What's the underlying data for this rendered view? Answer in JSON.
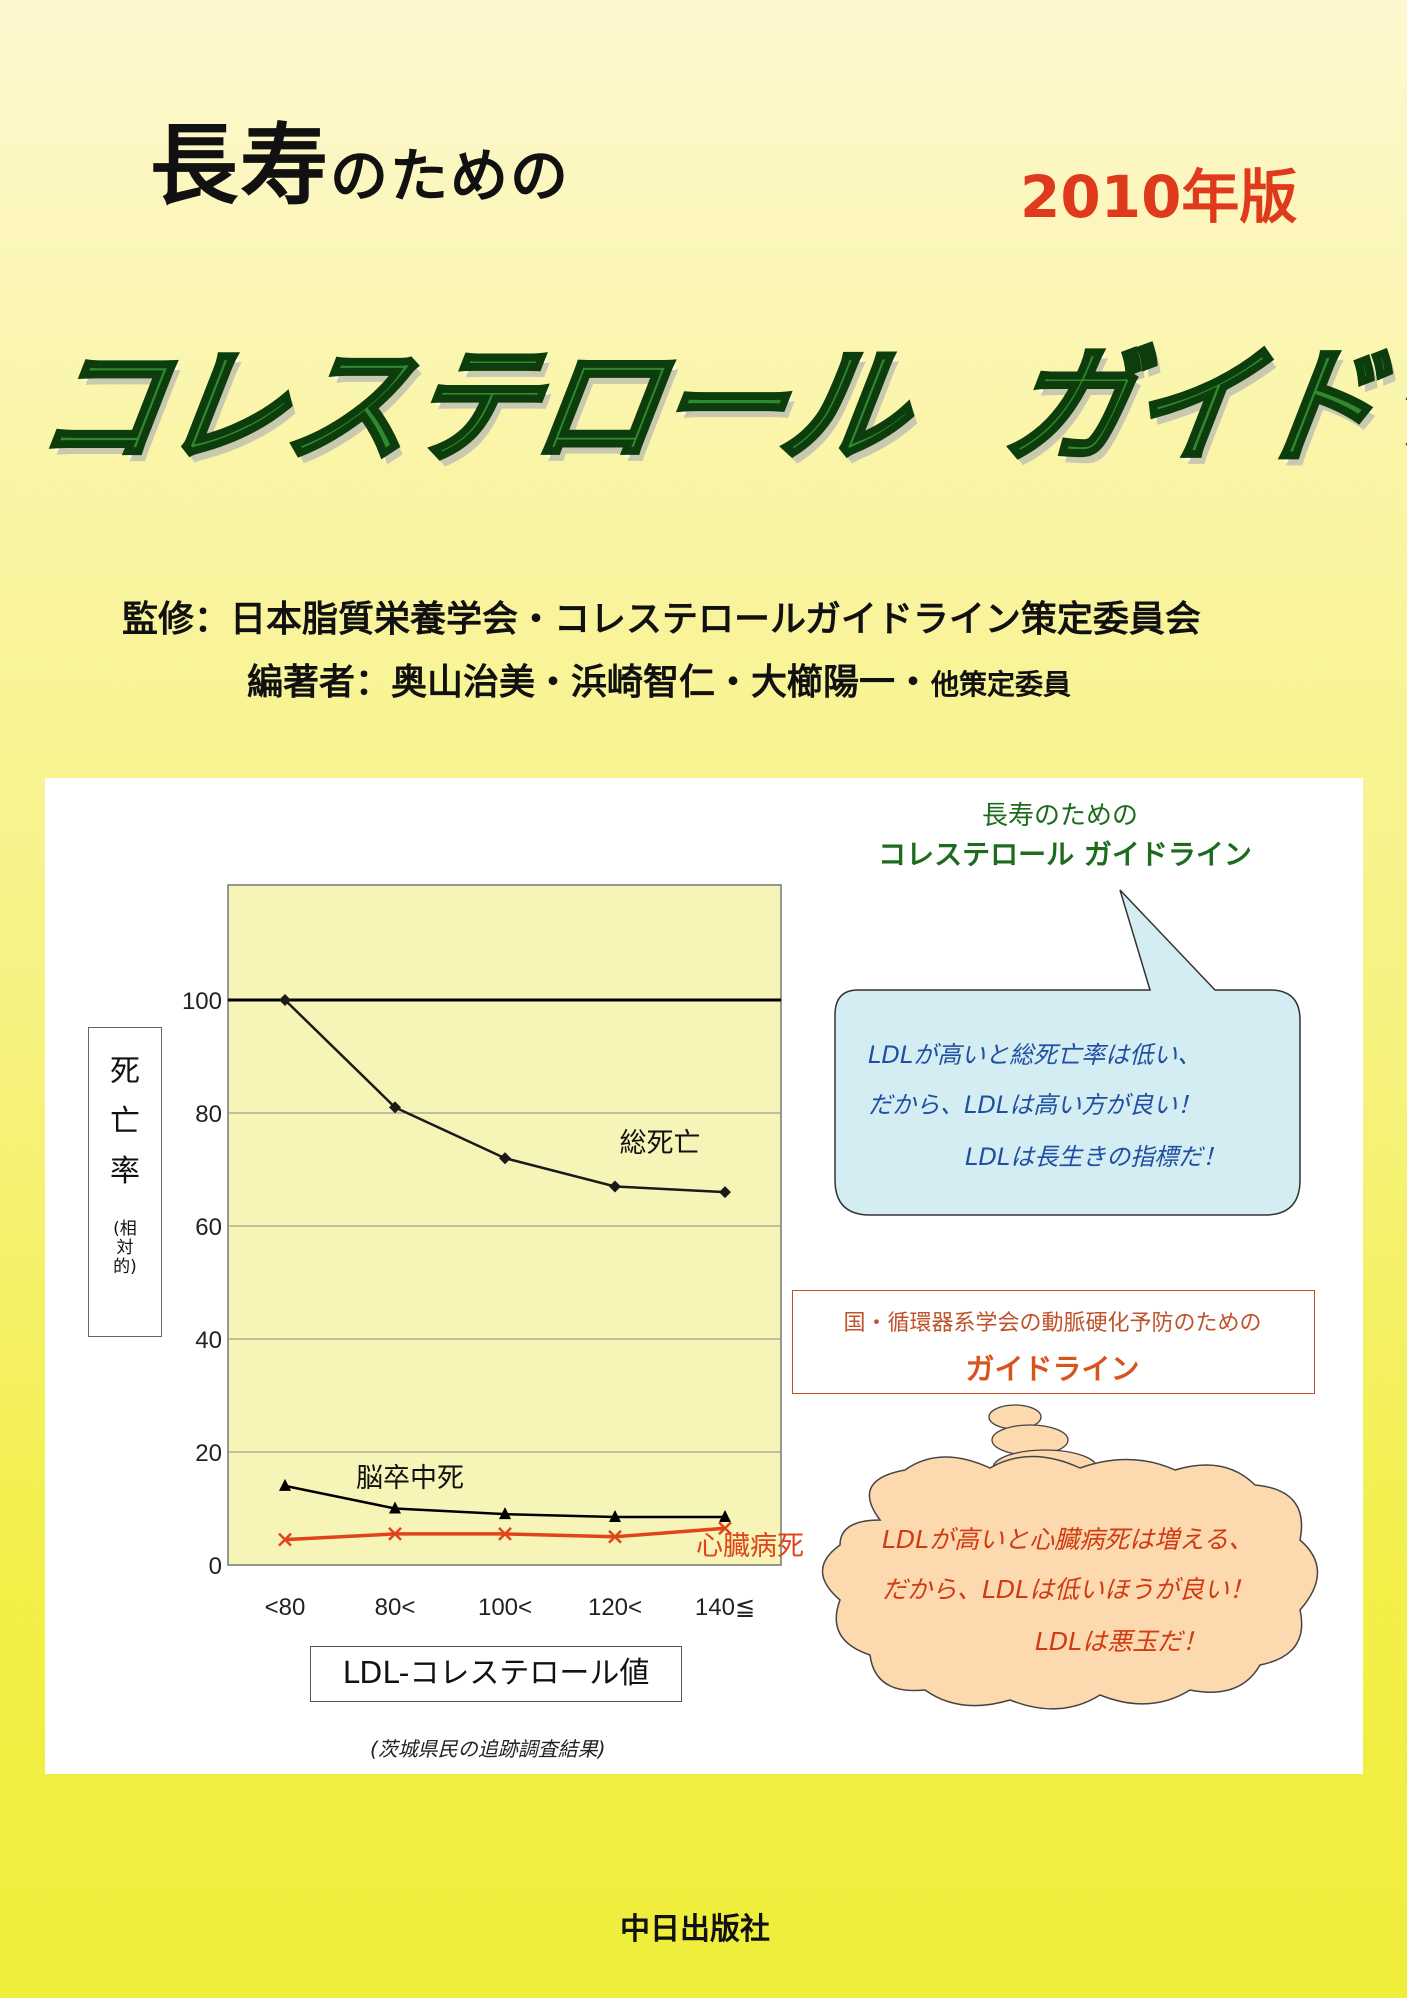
{
  "cover": {
    "title_kanji": "長寿",
    "title_kana": "のための",
    "edition": "2010年版",
    "main_title_part1": "コレステロール",
    "main_title_part2": "ガイドライン",
    "supervision": "監修：日本脂質栄養学会・コレステロールガイドライン策定委員会",
    "editors_main": "編著者：奥山治美・浜崎智仁・大櫛陽一・",
    "editors_small": "他策定委員",
    "publisher": "中日出版社"
  },
  "chart_labels": {
    "y_axis_main": [
      "死",
      "亡",
      "率"
    ],
    "y_axis_sub": [
      "(相",
      "対",
      "的)"
    ],
    "x_axis_title": "LDL-コレステロール値",
    "source": "(茨城県民の追跡調査結果)"
  },
  "chart_data": {
    "type": "line",
    "categories": [
      "<80",
      "80<",
      "100<",
      "120<",
      "140≦"
    ],
    "ylim": [
      0,
      100
    ],
    "yticks": [
      0,
      20,
      40,
      60,
      80,
      100
    ],
    "reference_line": 100,
    "grid": true,
    "series": [
      {
        "name": "総死亡",
        "values": [
          100,
          81,
          72,
          67,
          66
        ],
        "color": "#1a1a1a",
        "marker": "diamond"
      },
      {
        "name": "脳卒中死",
        "values": [
          14,
          10,
          9,
          8.5,
          8.5
        ],
        "color": "#000000",
        "marker": "triangle"
      },
      {
        "name": "心臓病死",
        "values": [
          4.5,
          5.5,
          5.5,
          5,
          6.5
        ],
        "color": "#e0441a",
        "marker": "x"
      }
    ]
  },
  "speech_bubble": {
    "title_line1": "長寿のための",
    "title_line2": "コレステロール ガイドライン",
    "lines": [
      "LDLが高いと総死亡率は低い、",
      "だから、LDLは高い方が良い！",
      "LDLは長生きの指標だ！"
    ],
    "fill_color": "#d4edf3"
  },
  "thought_bubble": {
    "title_line1": "国・循環器系学会の動脈硬化予防のための",
    "title_line2": "ガイドライン",
    "lines": [
      "LDLが高いと心臓病死は増える、",
      "だから、LDLは低いほうが良い！",
      "LDLは悪玉だ！"
    ],
    "fill_color": "#fcd9ae"
  }
}
